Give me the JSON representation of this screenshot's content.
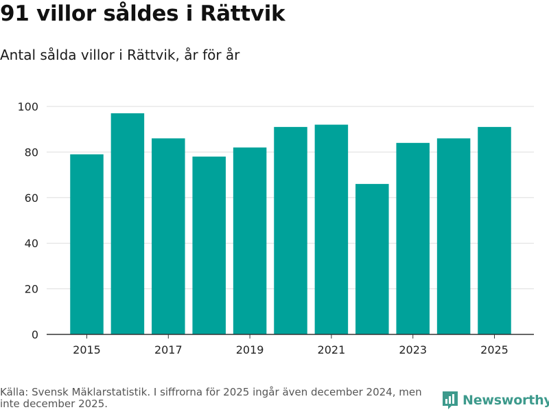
{
  "header": {
    "title": "91 villor såldes i Rättvik",
    "subtitle": "Antal sålda villor i Rättvik, år för år"
  },
  "footer": {
    "source": "Källa: Svensk Mäklarstatistik. I siffrorna för 2025 ingår även december 2024, men inte december 2025.",
    "logo_text": "Newsworthy"
  },
  "colors": {
    "bar": "#00a29a",
    "grid": "#dddddd",
    "axis": "#333333",
    "brand": "#3d9a8c"
  },
  "chart_data": {
    "type": "bar",
    "title": "Antal sålda villor i Rättvik, år för år",
    "xlabel": "",
    "ylabel": "",
    "categories": [
      "2015",
      "2016",
      "2017",
      "2018",
      "2019",
      "2020",
      "2021",
      "2022",
      "2023",
      "2024",
      "2025"
    ],
    "values": [
      79,
      97,
      86,
      78,
      82,
      91,
      92,
      66,
      84,
      86,
      91
    ],
    "x_tick_labels": [
      "2015",
      "2017",
      "2019",
      "2021",
      "2023",
      "2025"
    ],
    "y_ticks": [
      0,
      20,
      40,
      60,
      80,
      100
    ],
    "ylim": [
      0,
      100
    ],
    "grid": true
  }
}
